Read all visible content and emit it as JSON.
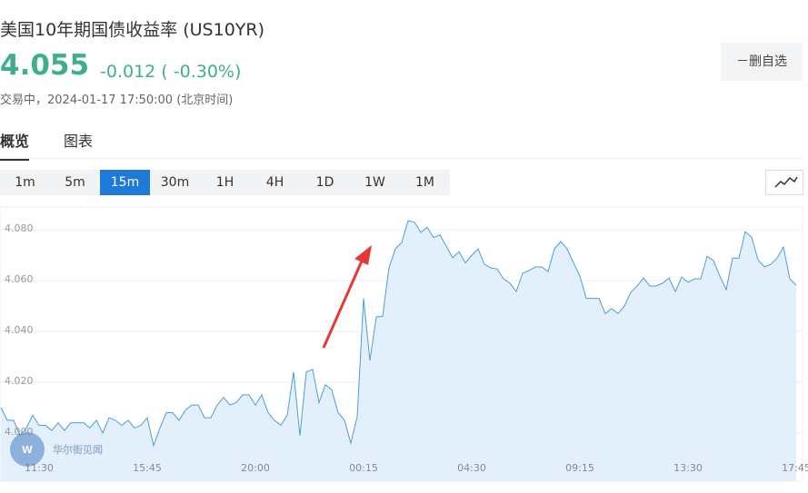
{
  "header": {
    "title": "美国10年期国债收益率",
    "symbol": "(US10YR)",
    "price": "4.055",
    "change": "-0.012",
    "change_pct": "( -0.30%)",
    "status": "交易中，2024-01-17 17:50:00 (北京时间)",
    "button": "－删自选"
  },
  "tabs": [
    "概览",
    "图表"
  ],
  "intervals": [
    "1m",
    "5m",
    "15m",
    "30m",
    "1H",
    "4H",
    "1D",
    "1W",
    "1M"
  ],
  "active_interval": "15m",
  "watermark": "华尔街见闻",
  "chart_data": {
    "type": "area",
    "color": "#4a9fd8",
    "fill": "#e3f0fc",
    "grid": true,
    "ylim": [
      3.981,
      4.089
    ],
    "yticks": [
      {
        "value": 4.0,
        "label": "4.000"
      },
      {
        "value": 4.02,
        "label": "4.020"
      },
      {
        "value": 4.04,
        "label": "4.040"
      },
      {
        "value": 4.06,
        "label": "4.060"
      },
      {
        "value": 4.08,
        "label": "4.080"
      }
    ],
    "categories": [
      null,
      null,
      null,
      null,
      null,
      null,
      "11:30",
      null,
      null,
      null,
      null,
      null,
      null,
      null,
      null,
      null,
      null,
      null,
      null,
      null,
      null,
      null,
      null,
      "15:45",
      null,
      null,
      null,
      null,
      null,
      null,
      null,
      null,
      null,
      null,
      null,
      null,
      null,
      null,
      null,
      null,
      "20:00",
      null,
      null,
      null,
      null,
      null,
      null,
      null,
      null,
      null,
      null,
      null,
      null,
      null,
      null,
      null,
      null,
      "00:15",
      null,
      null,
      null,
      null,
      null,
      null,
      null,
      null,
      null,
      null,
      null,
      null,
      null,
      null,
      null,
      null,
      "04:30",
      null,
      null,
      null,
      null,
      null,
      null,
      null,
      null,
      null,
      null,
      null,
      null,
      null,
      null,
      null,
      null,
      "09:15",
      null,
      null,
      null,
      null,
      null,
      null,
      null,
      null,
      null,
      null,
      null,
      null,
      null,
      null,
      null,
      null,
      "13:30",
      null,
      null,
      null,
      null,
      null,
      null,
      null,
      null,
      null,
      null,
      null,
      null,
      null,
      null,
      null,
      null,
      "17:45"
    ],
    "values": [
      4.01,
      4.005,
      4.005,
      3.999,
      4.002,
      4.007,
      4.003,
      4.003,
      4.001,
      4.004,
      4.001,
      4.004,
      4.004,
      4.004,
      4.002,
      4.005,
      4.0,
      4.006,
      4.005,
      4.003,
      4.005,
      4.002,
      4.003,
      4.006,
      3.995,
      4.002,
      4.008,
      4.008,
      4.005,
      4.009,
      4.011,
      4.011,
      4.006,
      4.006,
      4.011,
      4.014,
      4.011,
      4.012,
      4.015,
      4.015,
      4.011,
      4.015,
      4.008,
      4.005,
      4.003,
      4.007,
      4.024,
      3.999,
      4.024,
      4.025,
      4.012,
      4.019,
      4.017,
      4.008,
      4.005,
      3.996,
      4.0064,
      4.053,
      4.0286,
      4.0457,
      4.046,
      4.065,
      4.0725,
      4.075,
      4.0836,
      4.083,
      4.079,
      4.081,
      4.077,
      4.078,
      4.0736,
      4.069,
      4.0714,
      4.067,
      4.07,
      4.0725,
      4.0664,
      4.065,
      4.0646,
      4.0607,
      4.059,
      4.0557,
      4.0629,
      4.064,
      4.0654,
      4.0654,
      4.0636,
      4.0725,
      4.0754,
      4.0725,
      4.067,
      4.0618,
      4.053,
      4.053,
      4.053,
      4.047,
      4.049,
      4.047,
      4.05,
      4.0554,
      4.0579,
      4.061,
      4.0579,
      4.0579,
      4.059,
      4.061,
      4.0557,
      4.0614,
      4.0593,
      4.0607,
      4.0607,
      4.0696,
      4.0679,
      4.0618,
      4.0564,
      4.0689,
      4.0689,
      4.0793,
      4.0771,
      4.0682,
      4.0654,
      4.0664,
      4.0689,
      4.0732,
      4.0607,
      4.0582
    ]
  }
}
